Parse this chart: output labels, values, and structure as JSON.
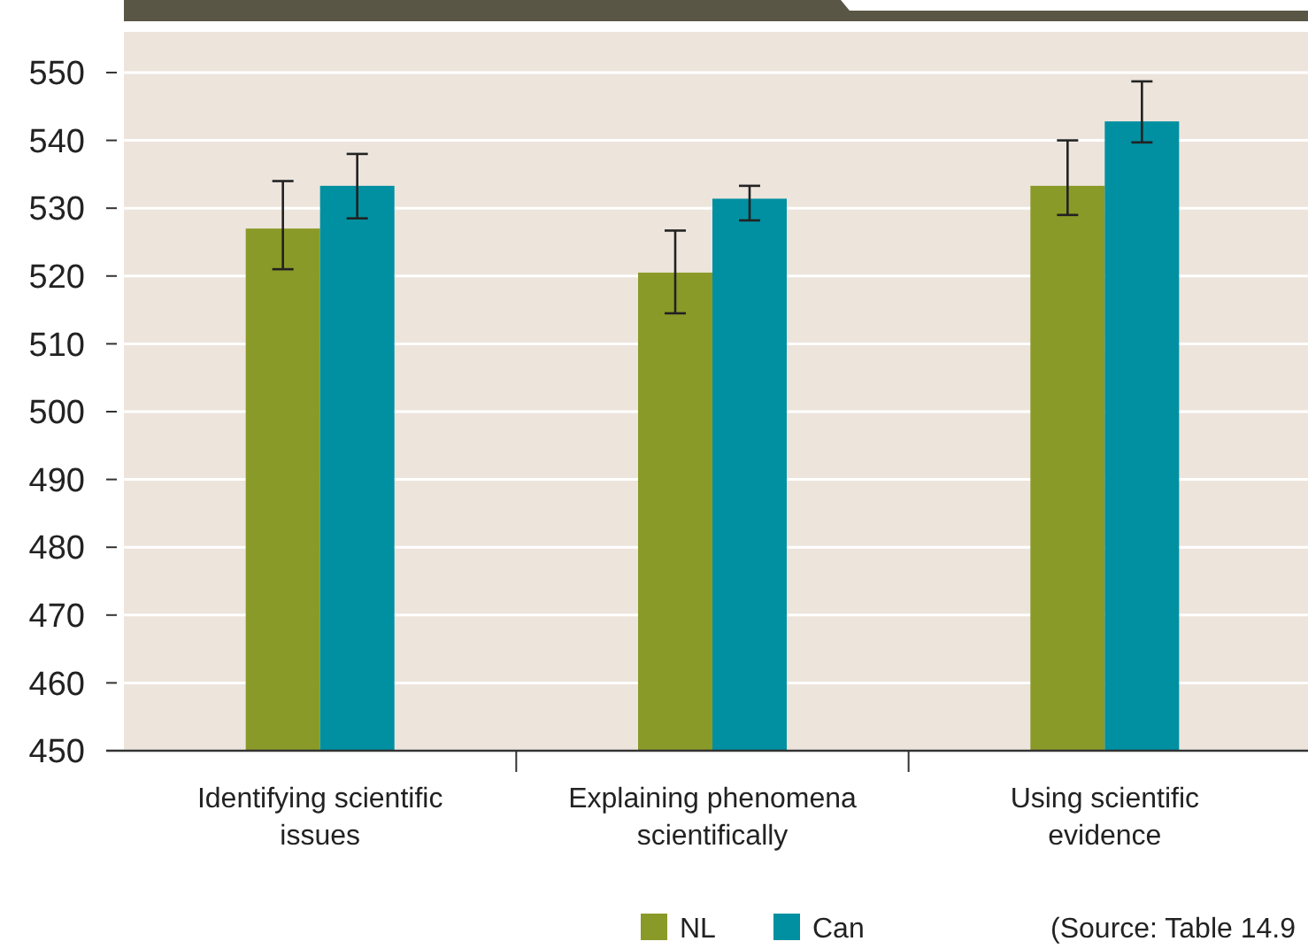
{
  "chart_data": {
    "type": "bar",
    "categories": [
      "Identifying scientific issues",
      "Explaining phenomena scientifically",
      "Using scientific evidence"
    ],
    "series": [
      {
        "name": "NL",
        "color": "#8a9a28",
        "values": [
          527,
          520.5,
          533.3
        ],
        "errors": [
          [
            521,
            534
          ],
          [
            514.5,
            526.7
          ],
          [
            529,
            540
          ]
        ]
      },
      {
        "name": "Can",
        "color": "#0090a2",
        "values": [
          533.3,
          531.4,
          542.8
        ],
        "errors": [
          [
            528.5,
            538
          ],
          [
            528.2,
            533.3
          ],
          [
            539.7,
            548.7
          ]
        ]
      }
    ],
    "ylim": [
      450,
      556
    ],
    "yticks": [
      450,
      460,
      470,
      480,
      490,
      500,
      510,
      520,
      530,
      540,
      550
    ],
    "grid": "y",
    "legend": "bottom",
    "annotations": [
      "(Source: Table 14.9"
    ]
  }
}
